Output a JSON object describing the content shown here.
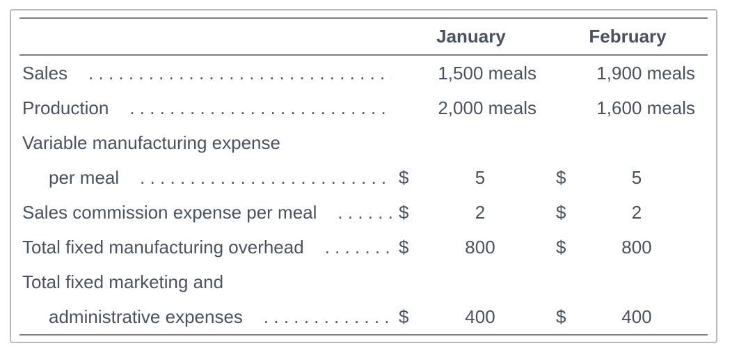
{
  "card": {
    "border_color": "#b7b7b7",
    "rule_color": "#7e7e7e",
    "text_color": "#4a5161",
    "background": "#ffffff"
  },
  "header": {
    "col1": "January",
    "col2": "February"
  },
  "currency_symbol": "$",
  "leader_dots": ". . . . . . . . . . . . . . . . . . . . . . . . . . . . . . . . . . . . . . . . . . . . . . . . . . . . . . . . . . . .",
  "rows": [
    {
      "label": "Sales",
      "type": "meals",
      "jan": "1,500 meals",
      "feb": "1,900 meals"
    },
    {
      "label": "Production",
      "type": "meals",
      "jan": "2,000 meals",
      "feb": "1,600 meals"
    },
    {
      "label": "Variable manufacturing expense",
      "type": "label-only"
    },
    {
      "label": "per meal",
      "type": "currency",
      "indent": true,
      "jan": "5",
      "feb": "5"
    },
    {
      "label": "Sales commission expense per meal",
      "type": "currency",
      "jan": "2",
      "feb": "2"
    },
    {
      "label": "Total fixed manufacturing overhead",
      "type": "currency",
      "jan": "800",
      "feb": "800"
    },
    {
      "label": "Total fixed marketing and",
      "type": "label-only"
    },
    {
      "label": "administrative expenses",
      "type": "currency",
      "indent": true,
      "jan": "400",
      "feb": "400"
    }
  ]
}
